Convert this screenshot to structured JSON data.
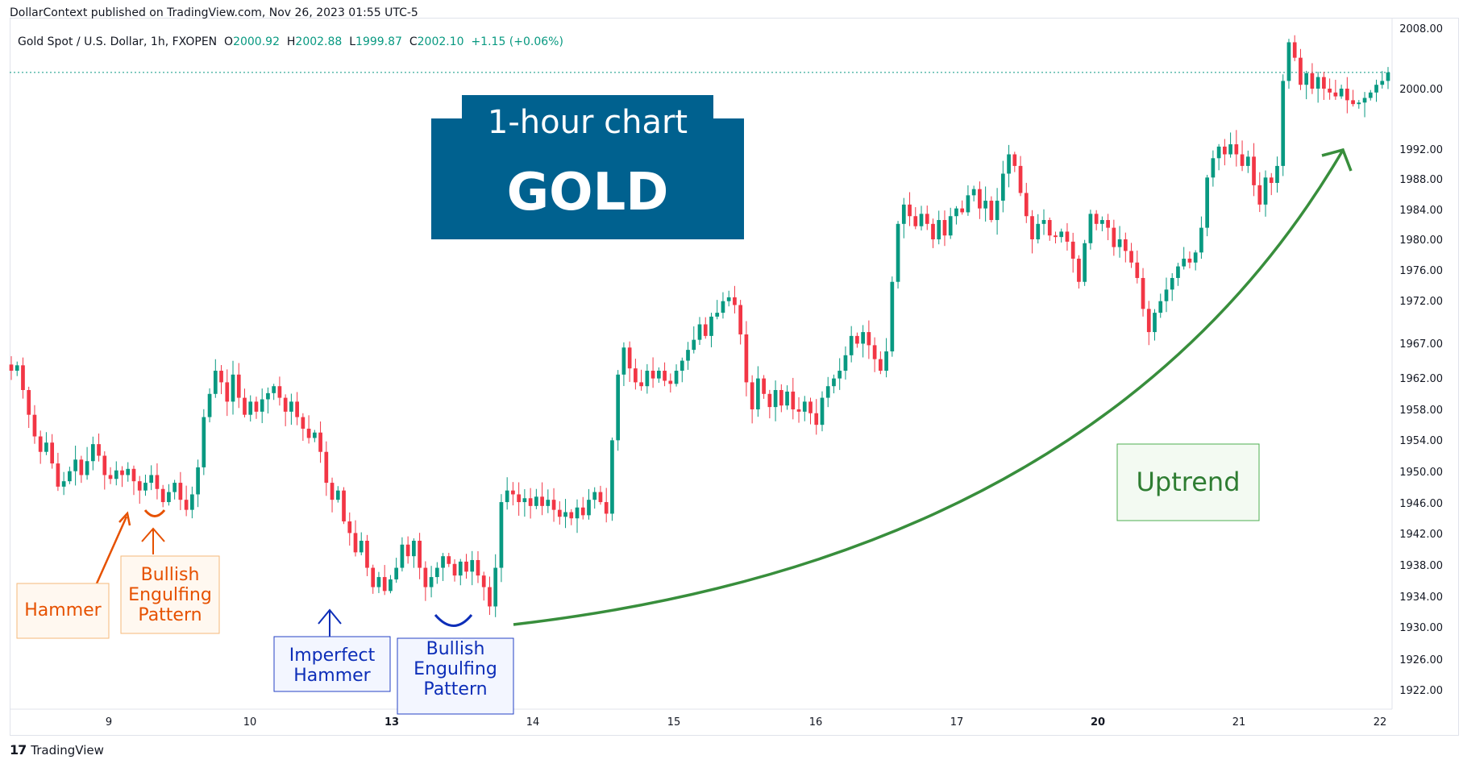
{
  "publisher_line": "DollarContext published on TradingView.com, Nov 26, 2023 01:55 UTC-5",
  "footer_brand": "TradingView",
  "footer_mark": "17",
  "legend": {
    "symbol": "Gold Spot / U.S. Dollar, 1h, FXOPEN",
    "o_label": "O",
    "o_value": "2000.92",
    "h_label": "H",
    "h_value": "2002.88",
    "l_label": "L",
    "l_value": "1999.87",
    "c_label": "C",
    "c_value": "2002.10",
    "change": "+1.15 (+0.06%)"
  },
  "title_box": {
    "line1": "1-hour chart",
    "line2": "GOLD",
    "color": "#00618f"
  },
  "annotations": {
    "hammer_1": "Hammer",
    "engulfing_1": [
      "Bullish",
      "Engulfing",
      "Pattern"
    ],
    "imperfect_hammer": [
      "Imperfect",
      "Hammer"
    ],
    "engulfing_2": [
      "Bullish",
      "Engulfing",
      "Pattern"
    ],
    "uptrend": "Uptrend"
  },
  "colors": {
    "up": "#089981",
    "down": "#f23645",
    "orange": "#e65100",
    "blue": "#0d2eb8",
    "green": "#388e3c"
  },
  "chart_data": {
    "type": "candlestick",
    "ylim": [
      1919,
      2008
    ],
    "y_ticks": [
      "2008.00",
      "2000.00",
      "1992.00",
      "1988.00",
      "1984.00",
      "1980.00",
      "1976.00",
      "1972.00",
      "1967.00",
      "1962.00",
      "1958.00",
      "1954.00",
      "1950.00",
      "1946.00",
      "1942.00",
      "1938.00",
      "1934.00",
      "1930.00",
      "1926.00",
      "1922.00"
    ],
    "x_ticks": [
      "9",
      "10",
      "13",
      "14",
      "15",
      "16",
      "17",
      "20",
      "21",
      "22"
    ],
    "x_ticks_bold": [
      "13",
      "20"
    ],
    "last_price": 2002.1,
    "closes": [
      1963.5,
      1964.2,
      1961.0,
      1957.8,
      1955.0,
      1953.0,
      1954.2,
      1951.5,
      1948.5,
      1949.2,
      1950.5,
      1952.0,
      1950.0,
      1951.8,
      1954.0,
      1952.5,
      1950.0,
      1949.5,
      1950.6,
      1950.0,
      1950.8,
      1949.2,
      1948.0,
      1949.0,
      1950.0,
      1948.2,
      1946.5,
      1947.8,
      1949.0,
      1946.8,
      1945.5,
      1947.5,
      1951.0,
      1957.5,
      1960.5,
      1963.5,
      1962.0,
      1959.5,
      1963.0,
      1960.0,
      1957.8,
      1959.5,
      1958.2,
      1959.8,
      1960.6,
      1961.5,
      1960.0,
      1958.2,
      1959.5,
      1957.5,
      1956.0,
      1954.8,
      1955.5,
      1953.0,
      1949.0,
      1946.8,
      1948.0,
      1944.0,
      1942.5,
      1940.0,
      1941.5,
      1938.0,
      1935.5,
      1936.8,
      1935.0,
      1936.5,
      1938.0,
      1941.0,
      1939.5,
      1941.5,
      1938.0,
      1935.5,
      1936.8,
      1938.0,
      1939.5,
      1938.5,
      1937.0,
      1938.8,
      1937.5,
      1939.0,
      1937.0,
      1935.5,
      1933.0,
      1938.0,
      1946.5,
      1948.0,
      1947.5,
      1946.5,
      1947.0,
      1946.0,
      1947.2,
      1946.0,
      1946.8,
      1945.5,
      1944.6,
      1945.2,
      1944.4,
      1945.8,
      1944.8,
      1946.8,
      1947.8,
      1946.5,
      1945.0,
      1954.5,
      1963.0,
      1966.5,
      1963.8,
      1962.0,
      1961.5,
      1963.5,
      1962.5,
      1963.5,
      1962.2,
      1961.8,
      1963.5,
      1964.8,
      1966.2,
      1967.5,
      1969.5,
      1968.0,
      1970.5,
      1971.0,
      1972.5,
      1973.0,
      1972.0,
      1968.2,
      1962.0,
      1958.5,
      1962.5,
      1960.5,
      1958.8,
      1961.0,
      1959.0,
      1960.8,
      1958.5,
      1958.2,
      1959.5,
      1958.0,
      1956.5,
      1960.0,
      1961.5,
      1962.5,
      1963.5,
      1965.5,
      1968.0,
      1967.0,
      1968.5,
      1966.8,
      1965.0,
      1963.5,
      1966.0,
      1975.0,
      1982.5,
      1985.0,
      1983.5,
      1982.2,
      1983.8,
      1982.5,
      1980.5,
      1983.0,
      1981.0,
      1983.5,
      1984.5,
      1984.0,
      1986.2,
      1987.0,
      1984.5,
      1985.5,
      1983.0,
      1985.5,
      1989.0,
      1991.5,
      1990.0,
      1986.5,
      1983.5,
      1980.5,
      1982.5,
      1983.0,
      1981.0,
      1980.8,
      1981.5,
      1980.2,
      1978.0,
      1975.0,
      1980.0,
      1983.8,
      1982.5,
      1983.0,
      1982.0,
      1979.5,
      1980.5,
      1979.0,
      1977.5,
      1975.5,
      1971.5,
      1968.5,
      1971.0,
      1972.5,
      1974.0,
      1975.5,
      1977.0,
      1978.0,
      1977.5,
      1978.8,
      1982.0,
      1988.5,
      1991.0,
      1992.5,
      1991.5,
      1992.8,
      1991.5,
      1990.0,
      1991.2,
      1987.5,
      1985.0,
      1988.5,
      1987.8,
      1990.0,
      2001.0,
      2006.0,
      2004.0,
      2000.5,
      2002.0,
      2000.0,
      2001.5,
      2000.0,
      1999.5,
      1999.0,
      2000.0,
      1998.5,
      1998.0,
      1998.2,
      1998.8,
      1999.5,
      2000.5,
      2001.0,
      2002.1
    ]
  }
}
